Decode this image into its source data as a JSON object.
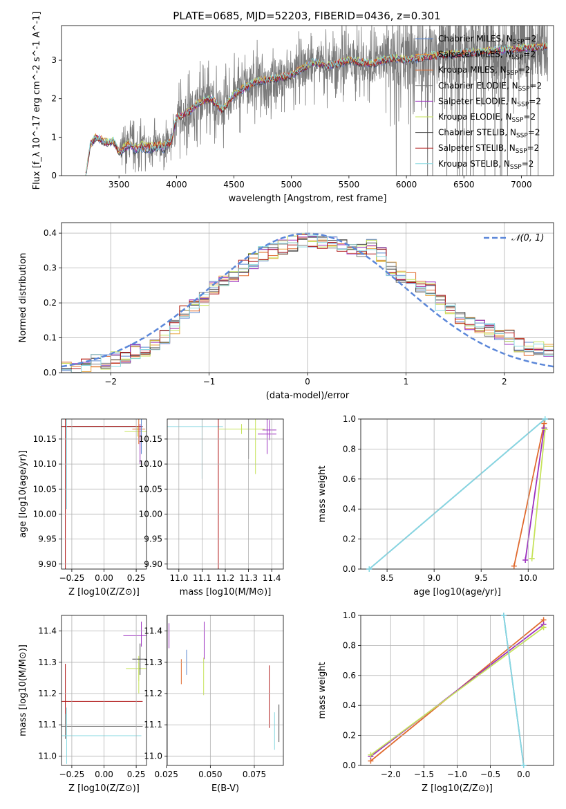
{
  "title": "PLATE=0685, MJD=52203, FIBERID=0436, z=0.301",
  "colors": {
    "Chabrier MILES": "#5b87cf",
    "Salpeter MILES": "#e8a33c",
    "Kroupa MILES": "#e06a2e",
    "Chabrier ELODIE": "#7a7a7a",
    "Salpeter ELODIE": "#9b2fbf",
    "Kroupa ELODIE": "#c6e35a",
    "Chabrier STELIB": "#444444",
    "Salpeter STELIB": "#b01818",
    "Kroupa STELIB": "#86d8e0",
    "gauss": "#5b87d9",
    "grid": "#b0b0b0"
  },
  "chart_data": [
    {
      "id": "spectrum",
      "type": "line",
      "xlabel": "wavelength [Angstrom, rest frame]",
      "ylabel": "Flux [f_λ 10^-17 erg cm^-2 s^-1 A^-1]",
      "xlim": [
        3000,
        7280
      ],
      "ylim": [
        0,
        3.9
      ],
      "xticks": [
        3500,
        4000,
        4500,
        5000,
        5500,
        6000,
        6500,
        7000
      ],
      "yticks": [
        0,
        1,
        2,
        3
      ],
      "legend": "top-right",
      "legend_entries": [
        "Chabrier MILES, N_SSP=2",
        "Salpeter MILES, N_SSP=2",
        "Kroupa MILES, N_SSP=2",
        "Chabrier ELODIE, N_SSP=2",
        "Salpeter ELODIE, N_SSP=2",
        "Kroupa ELODIE, N_SSP=2",
        "Chabrier STELIB, N_SSP=2",
        "Salpeter STELIB, N_SSP=2",
        "Kroupa STELIB, N_SSP=2"
      ],
      "continuum": {
        "wavelength": [
          3210,
          3250,
          3300,
          3350,
          3400,
          3450,
          3500,
          3550,
          3600,
          3650,
          3700,
          3750,
          3800,
          3850,
          3900,
          3950,
          4000,
          4100,
          4200,
          4300,
          4400,
          4500,
          4600,
          4700,
          4800,
          4900,
          5000,
          5100,
          5200,
          5300,
          5400,
          5500,
          5600,
          5700,
          5800,
          5900,
          6000,
          6200,
          6400,
          6600,
          6800,
          7000,
          7200
        ],
        "flux": [
          0.0,
          0.8,
          1.0,
          0.92,
          0.85,
          0.9,
          0.62,
          0.75,
          0.85,
          0.7,
          0.8,
          0.75,
          0.78,
          0.8,
          0.78,
          0.85,
          1.5,
          1.65,
          1.9,
          2.0,
          1.7,
          2.1,
          2.3,
          2.45,
          2.5,
          2.55,
          2.6,
          2.8,
          2.95,
          2.85,
          2.9,
          3.0,
          2.95,
          2.9,
          3.0,
          3.05,
          3.0,
          3.1,
          3.15,
          3.2,
          3.25,
          3.3,
          3.35
        ]
      }
    },
    {
      "id": "residuals",
      "type": "line",
      "xlabel": "(data-model)/error",
      "ylabel": "Normed distribution",
      "xlim": [
        -2.5,
        2.5
      ],
      "ylim": [
        0,
        0.43
      ],
      "xticks": [
        -2,
        -1,
        0,
        1,
        2
      ],
      "yticks": [
        0.0,
        0.1,
        0.2,
        0.3,
        0.4
      ],
      "legend": "top-right",
      "gauss_label": "𝒩(0, 1)",
      "hist_bins": [
        -2.5,
        -2.4,
        -2.3,
        -2.2,
        -2.1,
        -2.0,
        -1.9,
        -1.8,
        -1.7,
        -1.6,
        -1.5,
        -1.4,
        -1.3,
        -1.2,
        -1.1,
        -1.0,
        -0.9,
        -0.8,
        -0.7,
        -0.6,
        -0.5,
        -0.4,
        -0.3,
        -0.2,
        -0.1,
        0.0,
        0.1,
        0.2,
        0.3,
        0.4,
        0.5,
        0.6,
        0.7,
        0.8,
        0.9,
        1.0,
        1.1,
        1.2,
        1.3,
        1.4,
        1.5,
        1.6,
        1.7,
        1.8,
        1.9,
        2.0,
        2.1,
        2.2,
        2.3,
        2.4,
        2.5
      ],
      "hist_base": [
        0.01,
        0.01,
        0.02,
        0.03,
        0.03,
        0.04,
        0.05,
        0.06,
        0.07,
        0.08,
        0.1,
        0.13,
        0.17,
        0.19,
        0.21,
        0.24,
        0.26,
        0.28,
        0.3,
        0.32,
        0.34,
        0.35,
        0.36,
        0.37,
        0.38,
        0.38,
        0.37,
        0.37,
        0.37,
        0.36,
        0.35,
        0.36,
        0.34,
        0.3,
        0.28,
        0.27,
        0.25,
        0.24,
        0.2,
        0.18,
        0.16,
        0.14,
        0.13,
        0.12,
        0.11,
        0.1,
        0.08,
        0.07,
        0.07,
        0.06
      ]
    },
    {
      "id": "age_vs_Z",
      "type": "scatter",
      "xlabel": "Z [log10(Z/Z⊙)]",
      "ylabel": "age  [log10(age/yr)]",
      "xlim": [
        -0.33,
        0.33
      ],
      "ylim": [
        9.89,
        10.19
      ],
      "xticks": [
        -0.25,
        0.0,
        0.25
      ],
      "yticks": [
        9.9,
        9.95,
        10.0,
        10.05,
        10.1,
        10.15
      ]
    },
    {
      "id": "age_vs_mass",
      "type": "scatter",
      "xlabel": "mass [log10(M/M⊙)]",
      "ylabel": "",
      "xlim": [
        10.95,
        11.45
      ],
      "ylim": [
        9.89,
        10.19
      ],
      "xticks": [
        11.0,
        11.1,
        11.2,
        11.3,
        11.4
      ],
      "yticks": [
        9.9,
        9.95,
        10.0,
        10.05,
        10.1,
        10.15
      ]
    },
    {
      "id": "massweight_vs_age",
      "type": "line",
      "xlabel": "age  [log10(age/yr)]",
      "ylabel": "mass weight",
      "xlim": [
        8.22,
        10.27
      ],
      "ylim": [
        0,
        1.0
      ],
      "xticks": [
        8.5,
        9.0,
        9.5,
        10.0
      ],
      "yticks": [
        0.0,
        0.2,
        0.4,
        0.6,
        0.8,
        1.0
      ],
      "series": [
        {
          "name": "Chabrier MILES",
          "x": [
            8.31,
            10.18
          ],
          "y": [
            0.0,
            1.0
          ]
        },
        {
          "name": "Kroupa STELIB",
          "x": [
            8.31,
            10.18
          ],
          "y": [
            0.0,
            1.0
          ]
        },
        {
          "name": "Kroupa MILES",
          "x": [
            9.85,
            10.17
          ],
          "y": [
            0.02,
            0.97
          ]
        },
        {
          "name": "Salpeter ELODIE",
          "x": [
            9.97,
            10.17
          ],
          "y": [
            0.06,
            0.94
          ]
        },
        {
          "name": "Kroupa ELODIE",
          "x": [
            10.04,
            10.18
          ],
          "y": [
            0.07,
            0.93
          ]
        }
      ]
    },
    {
      "id": "mass_vs_Z",
      "type": "scatter",
      "xlabel": "Z [log10(Z/Z⊙)]",
      "ylabel": "mass [log10(M/M⊙)]",
      "xlim": [
        -0.33,
        0.33
      ],
      "ylim": [
        10.97,
        11.45
      ],
      "xticks": [
        -0.25,
        0.0,
        0.25
      ],
      "yticks": [
        11.0,
        11.1,
        11.2,
        11.3,
        11.4
      ]
    },
    {
      "id": "mass_vs_EBV",
      "type": "scatter",
      "xlabel": "E(B-V)",
      "ylabel": "",
      "xlim": [
        0.0255,
        0.0915
      ],
      "ylim": [
        10.97,
        11.45
      ],
      "xticks": [
        0.025,
        0.05,
        0.075
      ],
      "yticks": [
        11.0,
        11.1,
        11.2,
        11.3,
        11.4
      ],
      "points": [
        {
          "x": 0.0265,
          "y": 11.385,
          "err": 0.04,
          "c": "Salpeter ELODIE"
        },
        {
          "x": 0.0335,
          "y": 11.27,
          "err": 0.04,
          "c": "Kroupa MILES"
        },
        {
          "x": 0.0365,
          "y": 11.3,
          "err": 0.04,
          "c": "Chabrier MILES"
        },
        {
          "x": 0.0462,
          "y": 11.255,
          "err": 0.06,
          "c": "Kroupa ELODIE"
        },
        {
          "x": 0.0465,
          "y": 11.37,
          "err": 0.06,
          "c": "Salpeter ELODIE"
        },
        {
          "x": 0.0835,
          "y": 11.19,
          "err": 0.1,
          "c": "Salpeter STELIB"
        },
        {
          "x": 0.0865,
          "y": 11.08,
          "err": 0.06,
          "c": "Kroupa STELIB"
        },
        {
          "x": 0.089,
          "y": 11.105,
          "err": 0.06,
          "c": "Chabrier STELIB"
        }
      ]
    },
    {
      "id": "massweight_vs_Z",
      "type": "line",
      "xlabel": "Z [log10(Z/Z⊙)]",
      "ylabel": "mass weight",
      "xlim": [
        -2.45,
        0.45
      ],
      "ylim": [
        0,
        1.0
      ],
      "xticks": [
        -2.0,
        -1.5,
        -1.0,
        -0.5,
        0.0
      ],
      "yticks": [
        0.0,
        0.2,
        0.4,
        0.6,
        0.8,
        1.0
      ],
      "series": [
        {
          "name": "Kroupa MILES",
          "x": [
            -2.3,
            0.3
          ],
          "y": [
            0.03,
            0.97
          ]
        },
        {
          "name": "Salpeter ELODIE",
          "x": [
            -2.3,
            0.3
          ],
          "y": [
            0.06,
            0.94
          ]
        },
        {
          "name": "Kroupa ELODIE",
          "x": [
            -2.3,
            0.3
          ],
          "y": [
            0.07,
            0.92
          ]
        },
        {
          "name": "Chabrier MILES",
          "x": [
            -0.3,
            0.0
          ],
          "y": [
            1.0,
            0.0
          ]
        },
        {
          "name": "Kroupa STELIB",
          "x": [
            -0.3,
            0.0
          ],
          "y": [
            1.0,
            0.0
          ]
        }
      ]
    }
  ]
}
